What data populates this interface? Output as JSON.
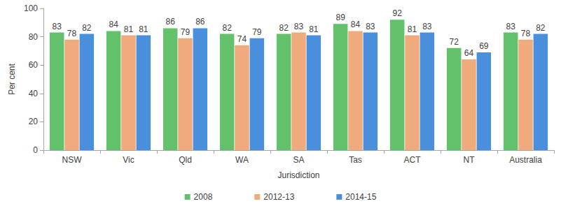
{
  "chart_data": {
    "type": "bar",
    "x_label": "Jurisdiction",
    "y_label": "Per cent",
    "categories": [
      "NSW",
      "Vic",
      "Qld",
      "WA",
      "SA",
      "Tas",
      "ACT",
      "NT",
      "Australia"
    ],
    "series": [
      {
        "name": "2008",
        "color": "#63c06b",
        "values": [
          83,
          84,
          86,
          82,
          82,
          89,
          92,
          72,
          83
        ]
      },
      {
        "name": "2012-13",
        "color": "#f0ab7c",
        "values": [
          78,
          81,
          79,
          74,
          83,
          84,
          81,
          64,
          78
        ]
      },
      {
        "name": "2014-15",
        "color": "#4a8fdc",
        "values": [
          82,
          81,
          86,
          79,
          81,
          83,
          83,
          69,
          82
        ]
      }
    ],
    "ylim": [
      0,
      100
    ],
    "yticks": [
      0,
      20,
      40,
      60,
      80,
      100
    ],
    "grid": false,
    "legend": "bottom",
    "data_labels": true
  }
}
